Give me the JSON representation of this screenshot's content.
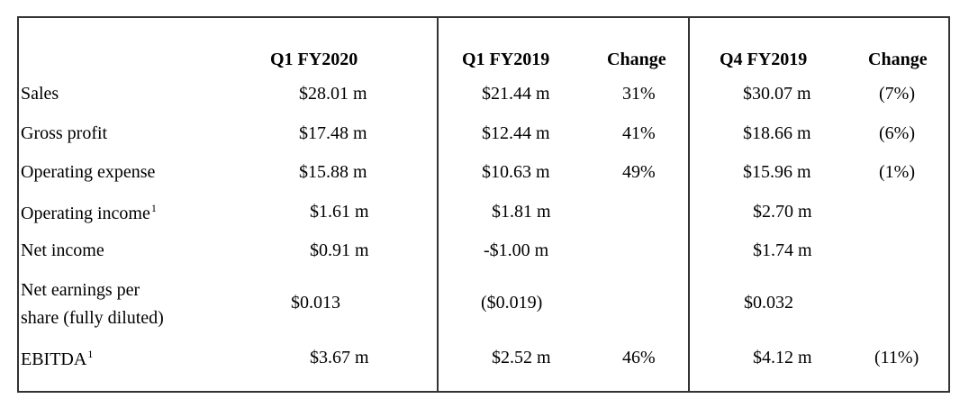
{
  "headers": {
    "q1fy2020": "Q1 FY2020",
    "q1fy2019": "Q1 FY2019",
    "change1": "Change",
    "q4fy2019": "Q4 FY2019",
    "change2": "Change"
  },
  "rows": [
    {
      "label": "Sales",
      "sup": "",
      "q1fy2020": "$28.01 m",
      "q1fy2019": "$21.44 m",
      "change1": "31%",
      "q4fy2019": "$30.07 m",
      "change2": "(7%)"
    },
    {
      "label": "Gross profit",
      "sup": "",
      "q1fy2020": "$17.48 m",
      "q1fy2019": "$12.44 m",
      "change1": "41%",
      "q4fy2019": "$18.66 m",
      "change2": "(6%)"
    },
    {
      "label": "Operating expense",
      "sup": "",
      "q1fy2020": "$15.88 m",
      "q1fy2019": "$10.63 m",
      "change1": "49%",
      "q4fy2019": "$15.96 m",
      "change2": "(1%)"
    },
    {
      "label": "Operating income",
      "sup": "1",
      "q1fy2020": "$1.61 m",
      "q1fy2019": "$1.81 m",
      "change1": "",
      "q4fy2019": "$2.70 m",
      "change2": ""
    },
    {
      "label": "Net income",
      "sup": "",
      "q1fy2020": "$0.91 m",
      "q1fy2019": "-$1.00 m",
      "change1": "",
      "q4fy2019": "$1.74 m",
      "change2": ""
    },
    {
      "label_line1": "Net earnings per",
      "label_line2": "share (fully diluted)",
      "q1fy2020": "$0.013",
      "q1fy2019": "($0.019)",
      "change1": "",
      "q4fy2019": "$0.032",
      "change2": ""
    },
    {
      "label": "EBITDA",
      "sup": "1",
      "q1fy2020": "$3.67 m",
      "q1fy2019": "$2.52 m",
      "change1": "46%",
      "q4fy2019": "$4.12 m",
      "change2": "(11%)"
    }
  ]
}
